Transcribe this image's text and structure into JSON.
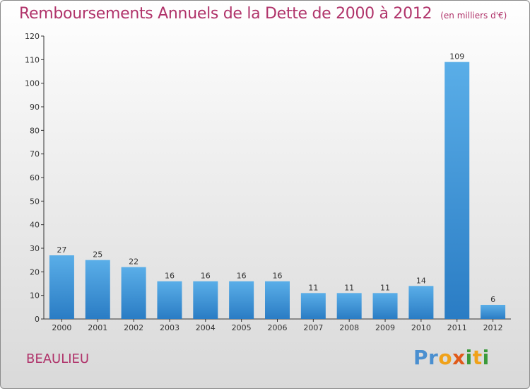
{
  "header": {
    "title": "Remboursements Annuels de la Dette de 2000 à 2012",
    "subtitle": "(en milliers d'€)"
  },
  "footer": {
    "commune": "BEAULIEU",
    "logo_text": "Proxiti"
  },
  "colors": {
    "title": "#b0336a",
    "bar_light": "#5aaee8",
    "bar_dark": "#2a7cc4",
    "axis": "#333333"
  },
  "chart_data": {
    "type": "bar",
    "title": "Remboursements Annuels de la Dette de 2000 à 2012",
    "subtitle": "(en milliers d'€)",
    "xlabel": "",
    "ylabel": "",
    "categories": [
      "2000",
      "2001",
      "2002",
      "2003",
      "2004",
      "2005",
      "2006",
      "2007",
      "2008",
      "2009",
      "2010",
      "2011",
      "2012"
    ],
    "values": [
      27,
      25,
      22,
      16,
      16,
      16,
      16,
      11,
      11,
      11,
      14,
      109,
      6
    ],
    "ylim": [
      0,
      120
    ],
    "yticks": [
      0,
      10,
      20,
      30,
      40,
      50,
      60,
      70,
      80,
      90,
      100,
      110,
      120
    ],
    "data_labels": true,
    "grid": false,
    "legend": "none"
  }
}
